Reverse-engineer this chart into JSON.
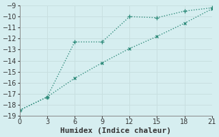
{
  "line1": {
    "x": [
      0,
      3,
      6,
      9,
      12,
      15,
      18,
      21
    ],
    "y": [
      -18.5,
      -17.3,
      -15.6,
      -14.2,
      -12.9,
      -11.8,
      -10.6,
      -9.3
    ],
    "color": "#2e8b7a",
    "linestyle": ":",
    "linewidth": 1.0,
    "marker": "x",
    "markersize": 3
  },
  "line2": {
    "x": [
      0,
      3,
      6,
      9,
      12,
      15,
      18,
      21
    ],
    "y": [
      -18.5,
      -17.3,
      -12.3,
      -12.3,
      -10.0,
      -10.1,
      -9.5,
      -9.2
    ],
    "color": "#2e8b7a",
    "linestyle": ":",
    "linewidth": 1.0,
    "marker": "+",
    "markersize": 4
  },
  "xlim": [
    0,
    21
  ],
  "ylim": [
    -19,
    -9
  ],
  "xticks": [
    0,
    3,
    6,
    9,
    12,
    15,
    18,
    21
  ],
  "yticks": [
    -19,
    -18,
    -17,
    -16,
    -15,
    -14,
    -13,
    -12,
    -11,
    -10,
    -9
  ],
  "xlabel": "Humidex (Indice chaleur)",
  "background_color": "#d6eef0",
  "grid_color": "#c8dfe0",
  "tick_fontsize": 7,
  "xlabel_fontsize": 8
}
